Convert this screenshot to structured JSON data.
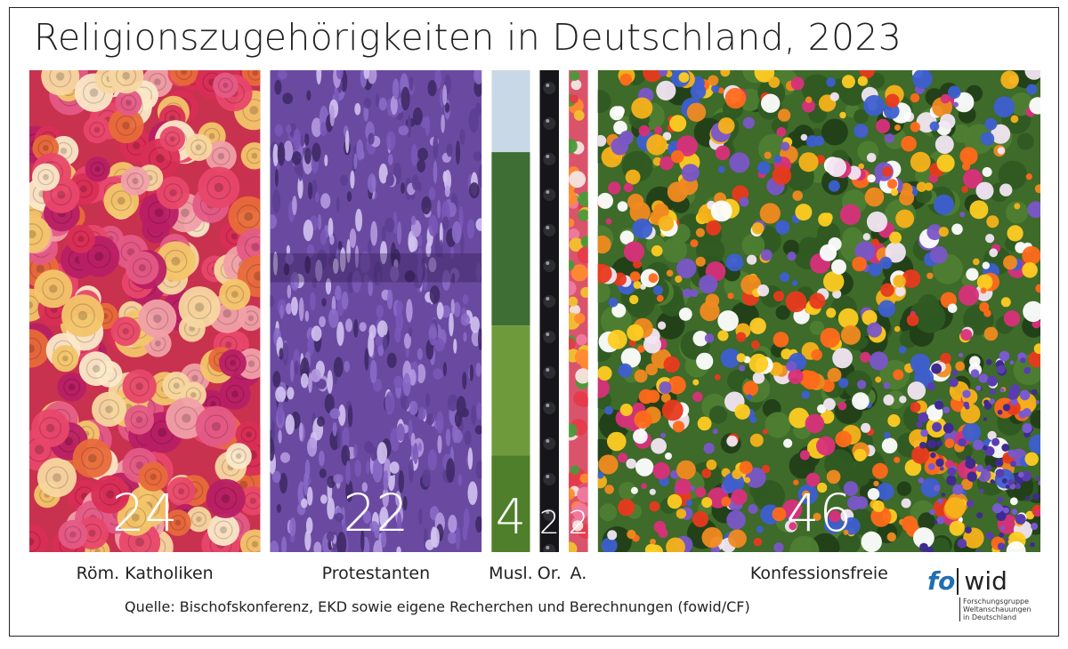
{
  "title": "Religionszugehörigkeiten in Deutschland, 2023",
  "source": "Quelle: Bischofskonferenz, EKD sowie eigene Recherchen und Berechnungen (fowid/CF)",
  "logo": {
    "prefix": "fo",
    "suffix": "wid",
    "subtitle": [
      "Forschungsgruppe",
      "Weltanschauungen",
      "in Deutschland"
    ]
  },
  "chart_data": {
    "type": "bar",
    "categories": [
      "Röm. Katholiken",
      "Protestanten",
      "Musl.",
      "Or.",
      "A.",
      "Konfessionsfreie"
    ],
    "values": [
      24,
      22,
      4,
      2,
      2,
      46
    ],
    "value_labels": [
      "24",
      "22",
      "4",
      "2",
      "2",
      "46"
    ],
    "unit": "percent share, shown as column widths",
    "fills": [
      "roses",
      "lavender",
      "landscape",
      "dark-berries",
      "mixed-flowers",
      "wildflowers"
    ]
  },
  "colors": {
    "roses_base": "#c8324e",
    "lavender_base": "#6a4aa0",
    "sky": "#c9d8e6",
    "berries": "#16161a",
    "wildflowers_base": "#3e6a2a",
    "value_text": "#ffffff"
  }
}
